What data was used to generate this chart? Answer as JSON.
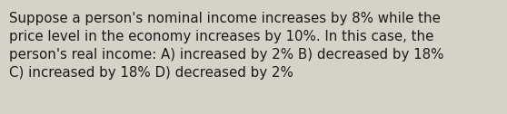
{
  "text_line1": "Suppose a person's nominal income increases by 8% while the",
  "text_line2": "price level in the economy increases by 10%. In this case, the",
  "text_line3": "person's real income: A) increased by 2% B) decreased by 18%",
  "text_line4": "C) increased by 18% D) decreased by 2%",
  "background_color": "#d6d2c8",
  "text_color": "#1a1a1a",
  "font_size": 10.8,
  "figsize": [
    5.58,
    1.26
  ],
  "dpi": 100
}
